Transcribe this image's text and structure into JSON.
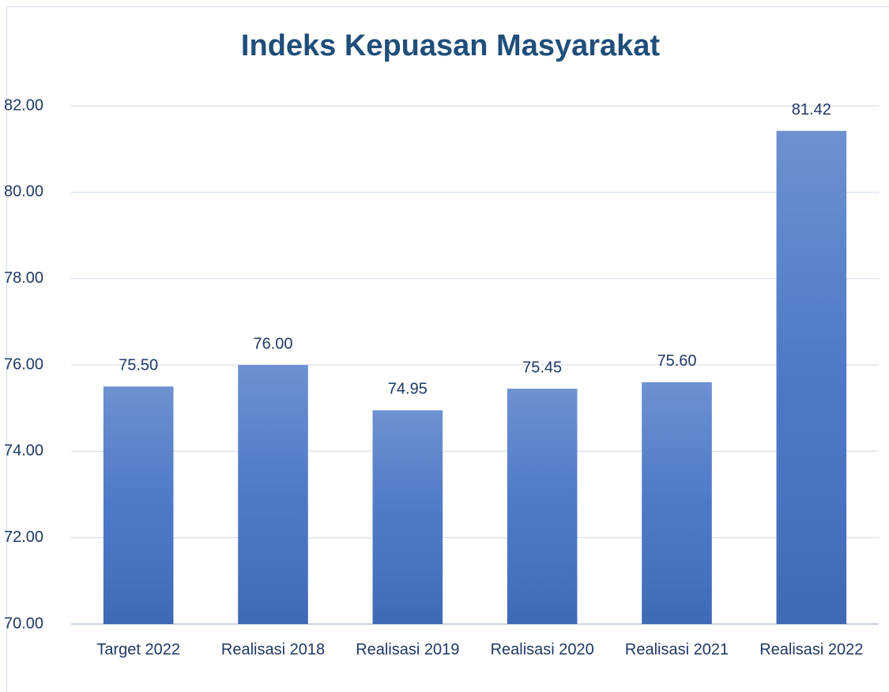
{
  "chart_data": {
    "type": "bar",
    "title": "Indeks Kepuasan Masyarakat",
    "categories": [
      "Target 2022",
      "Realisasi 2018",
      "Realisasi 2019",
      "Realisasi 2020",
      "Realisasi 2021",
      "Realisasi 2022"
    ],
    "values": [
      75.5,
      76,
      74.95,
      75.45,
      75.6,
      81.42
    ],
    "value_labels": [
      "75.50",
      "76.00",
      "74.95",
      "75.45",
      "75.60",
      "81.42"
    ],
    "color": "#4472c4",
    "ylim": [
      70,
      82
    ],
    "yticks": [
      {
        "value": 70,
        "label": "70.00"
      },
      {
        "value": 72,
        "label": "72.00"
      },
      {
        "value": 74,
        "label": "74.00"
      },
      {
        "value": 76,
        "label": "76.00"
      },
      {
        "value": 78,
        "label": "78.00"
      },
      {
        "value": 80,
        "label": "80.00"
      },
      {
        "value": 82,
        "label": "82.00"
      }
    ],
    "grid": true
  }
}
